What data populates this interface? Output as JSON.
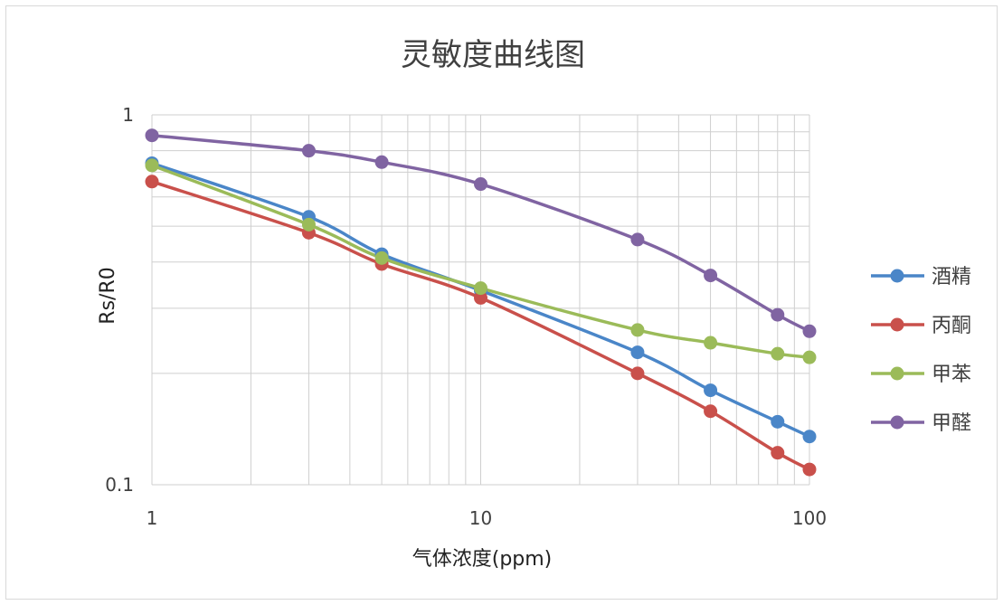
{
  "chart_data": {
    "type": "line",
    "title": "灵敏度曲线图",
    "xlabel": "气体浓度(ppm)",
    "ylabel": "Rs/R0",
    "x_scale": "log",
    "y_scale": "log",
    "xlim": [
      1,
      100
    ],
    "ylim": [
      0.1,
      1
    ],
    "x_tick_labels": [
      "1",
      "10",
      "100"
    ],
    "y_tick_labels": [
      "0.1",
      "1"
    ],
    "grid": true,
    "legend_position": "right",
    "x": [
      1,
      3,
      5,
      10,
      30,
      50,
      80,
      100
    ],
    "series": [
      {
        "name": "酒精",
        "color": "#4a86c8",
        "values": [
          0.74,
          0.53,
          0.42,
          0.335,
          0.228,
          0.18,
          0.148,
          0.135
        ]
      },
      {
        "name": "丙酮",
        "color": "#c9504b",
        "values": [
          0.66,
          0.48,
          0.395,
          0.32,
          0.2,
          0.158,
          0.122,
          0.11
        ]
      },
      {
        "name": "甲苯",
        "color": "#9bbb59",
        "values": [
          0.73,
          0.505,
          0.41,
          0.34,
          0.262,
          0.242,
          0.226,
          0.221
        ]
      },
      {
        "name": "甲醛",
        "color": "#8064a2",
        "values": [
          0.88,
          0.8,
          0.745,
          0.65,
          0.46,
          0.368,
          0.288,
          0.26
        ]
      }
    ]
  }
}
